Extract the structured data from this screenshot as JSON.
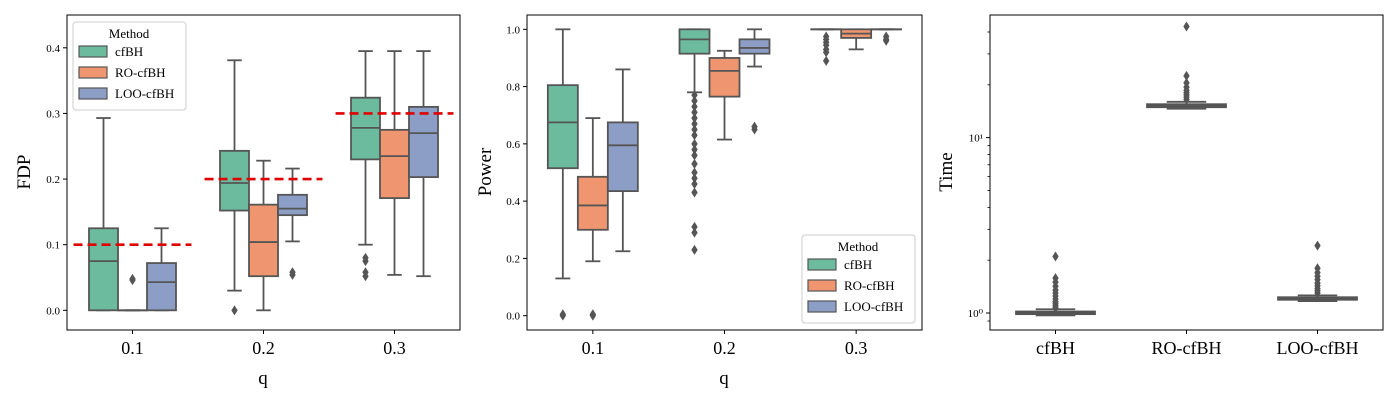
{
  "colors": {
    "cfBH": "#6DBB9F",
    "RO-cfBH": "#EF9670",
    "LOO-cfBH": "#8D9EC6",
    "box_edge": "#555555",
    "reference": "#E00000"
  },
  "chart_data": [
    {
      "type": "box",
      "panel": "FDP",
      "xlabel": "q",
      "ylabel": "FDP",
      "categories": [
        "0.1",
        "0.2",
        "0.3"
      ],
      "ylim": [
        -0.03,
        0.45
      ],
      "yticks": [
        0.0,
        0.1,
        0.2,
        0.3,
        0.4
      ],
      "ytick_labels": [
        "0.0",
        "0.1",
        "0.2",
        "0.3",
        "0.4"
      ],
      "reference_lines": [
        0.1,
        0.2,
        0.3
      ],
      "legend": {
        "title": "Method",
        "position": "top-left",
        "entries": [
          "cfBH",
          "RO-cfBH",
          "LOO-cfBH"
        ]
      },
      "series": [
        {
          "name": "cfBH",
          "boxes": [
            {
              "whislo": 0.0,
              "q1": 0.0,
              "med": 0.075,
              "q3": 0.125,
              "whishi": 0.293,
              "fliers": []
            },
            {
              "whislo": 0.03,
              "q1": 0.152,
              "med": 0.194,
              "q3": 0.243,
              "whishi": 0.381,
              "fliers": [
                0.0
              ]
            },
            {
              "whislo": 0.1,
              "q1": 0.23,
              "med": 0.278,
              "q3": 0.324,
              "whishi": 0.395,
              "fliers": [
                0.08,
                0.075,
                0.058,
                0.052
              ]
            }
          ]
        },
        {
          "name": "RO-cfBH",
          "boxes": [
            {
              "whislo": 0.0,
              "q1": 0.0,
              "med": 0.0,
              "q3": 0.0,
              "whishi": 0.0,
              "fliers": [
                0.048,
                0.046
              ]
            },
            {
              "whislo": 0.0,
              "q1": 0.052,
              "med": 0.104,
              "q3": 0.161,
              "whishi": 0.228,
              "fliers": []
            },
            {
              "whislo": 0.054,
              "q1": 0.171,
              "med": 0.235,
              "q3": 0.275,
              "whishi": 0.395,
              "fliers": []
            }
          ]
        },
        {
          "name": "LOO-cfBH",
          "boxes": [
            {
              "whislo": 0.0,
              "q1": 0.0,
              "med": 0.043,
              "q3": 0.072,
              "whishi": 0.125,
              "fliers": []
            },
            {
              "whislo": 0.105,
              "q1": 0.145,
              "med": 0.155,
              "q3": 0.176,
              "whishi": 0.216,
              "fliers": [
                0.058,
                0.054
              ]
            },
            {
              "whislo": 0.052,
              "q1": 0.203,
              "med": 0.27,
              "q3": 0.31,
              "whishi": 0.395,
              "fliers": []
            }
          ]
        }
      ]
    },
    {
      "type": "box",
      "panel": "Power",
      "xlabel": "q",
      "ylabel": "Power",
      "categories": [
        "0.1",
        "0.2",
        "0.3"
      ],
      "ylim": [
        -0.05,
        1.05
      ],
      "yticks": [
        0.0,
        0.2,
        0.4,
        0.6,
        0.8,
        1.0
      ],
      "ytick_labels": [
        "0.0",
        "0.2",
        "0.4",
        "0.6",
        "0.8",
        "1.0"
      ],
      "legend": {
        "title": "Method",
        "position": "bottom-right",
        "entries": [
          "cfBH",
          "RO-cfBH",
          "LOO-cfBH"
        ]
      },
      "series": [
        {
          "name": "cfBH",
          "boxes": [
            {
              "whislo": 0.13,
              "q1": 0.515,
              "med": 0.675,
              "q3": 0.805,
              "whishi": 1.0,
              "fliers": [
                0.0,
                0.005
              ]
            },
            {
              "whislo": 0.78,
              "q1": 0.915,
              "med": 0.965,
              "q3": 1.0,
              "whishi": 1.0,
              "fliers": [
                0.77,
                0.75,
                0.73,
                0.71,
                0.69,
                0.67,
                0.65,
                0.63,
                0.6,
                0.58,
                0.56,
                0.53,
                0.5,
                0.48,
                0.46,
                0.43,
                0.31,
                0.29,
                0.23
              ]
            },
            {
              "whislo": 1.0,
              "q1": 1.0,
              "med": 1.0,
              "q3": 1.0,
              "whishi": 1.0,
              "fliers": [
                0.975,
                0.965,
                0.955,
                0.945,
                0.93,
                0.92,
                0.89
              ]
            }
          ]
        },
        {
          "name": "RO-cfBH",
          "boxes": [
            {
              "whislo": 0.19,
              "q1": 0.3,
              "med": 0.385,
              "q3": 0.485,
              "whishi": 0.69,
              "fliers": [
                0.0,
                0.005
              ]
            },
            {
              "whislo": 0.615,
              "q1": 0.765,
              "med": 0.855,
              "q3": 0.9,
              "whishi": 0.925,
              "fliers": []
            },
            {
              "whislo": 0.93,
              "q1": 0.97,
              "med": 0.985,
              "q3": 1.0,
              "whishi": 1.0,
              "fliers": []
            }
          ]
        },
        {
          "name": "LOO-cfBH",
          "boxes": [
            {
              "whislo": 0.225,
              "q1": 0.435,
              "med": 0.595,
              "q3": 0.675,
              "whishi": 0.86,
              "fliers": []
            },
            {
              "whislo": 0.87,
              "q1": 0.915,
              "med": 0.935,
              "q3": 0.965,
              "whishi": 1.0,
              "fliers": [
                0.66,
                0.65
              ]
            },
            {
              "whislo": 1.0,
              "q1": 1.0,
              "med": 1.0,
              "q3": 1.0,
              "whishi": 1.0,
              "fliers": [
                0.975,
                0.965,
                0.96
              ]
            }
          ]
        }
      ]
    },
    {
      "type": "box",
      "panel": "Time",
      "xlabel": "",
      "ylabel": "Time",
      "yscale": "log",
      "categories": [
        "cfBH",
        "RO-cfBH",
        "LOO-cfBH"
      ],
      "ylim": [
        0.8,
        50
      ],
      "yticks": [
        1,
        10
      ],
      "ytick_labels": [
        "10⁰",
        "10¹"
      ],
      "series": [
        {
          "name": "Time",
          "boxes": [
            {
              "category": "cfBH",
              "whislo": 0.97,
              "q1": 0.985,
              "med": 1.0,
              "q3": 1.02,
              "whishi": 1.05,
              "fliers": [
                1.07,
                1.1,
                1.13,
                1.16,
                1.2,
                1.25,
                1.3,
                1.35,
                1.42,
                1.5,
                1.58,
                2.1
              ]
            },
            {
              "category": "RO-cfBH",
              "whislo": 14.6,
              "q1": 14.9,
              "med": 15.2,
              "q3": 15.5,
              "whishi": 16.0,
              "fliers": [
                16.5,
                17.0,
                17.5,
                18.0,
                18.6,
                19.4,
                20.5,
                22.5,
                43.0
              ]
            },
            {
              "category": "LOO-cfBH",
              "whislo": 1.17,
              "q1": 1.19,
              "med": 1.21,
              "q3": 1.23,
              "whishi": 1.26,
              "fliers": [
                1.3,
                1.34,
                1.38,
                1.43,
                1.48,
                1.55,
                1.62,
                1.7,
                1.8,
                2.42
              ]
            }
          ]
        }
      ]
    }
  ]
}
